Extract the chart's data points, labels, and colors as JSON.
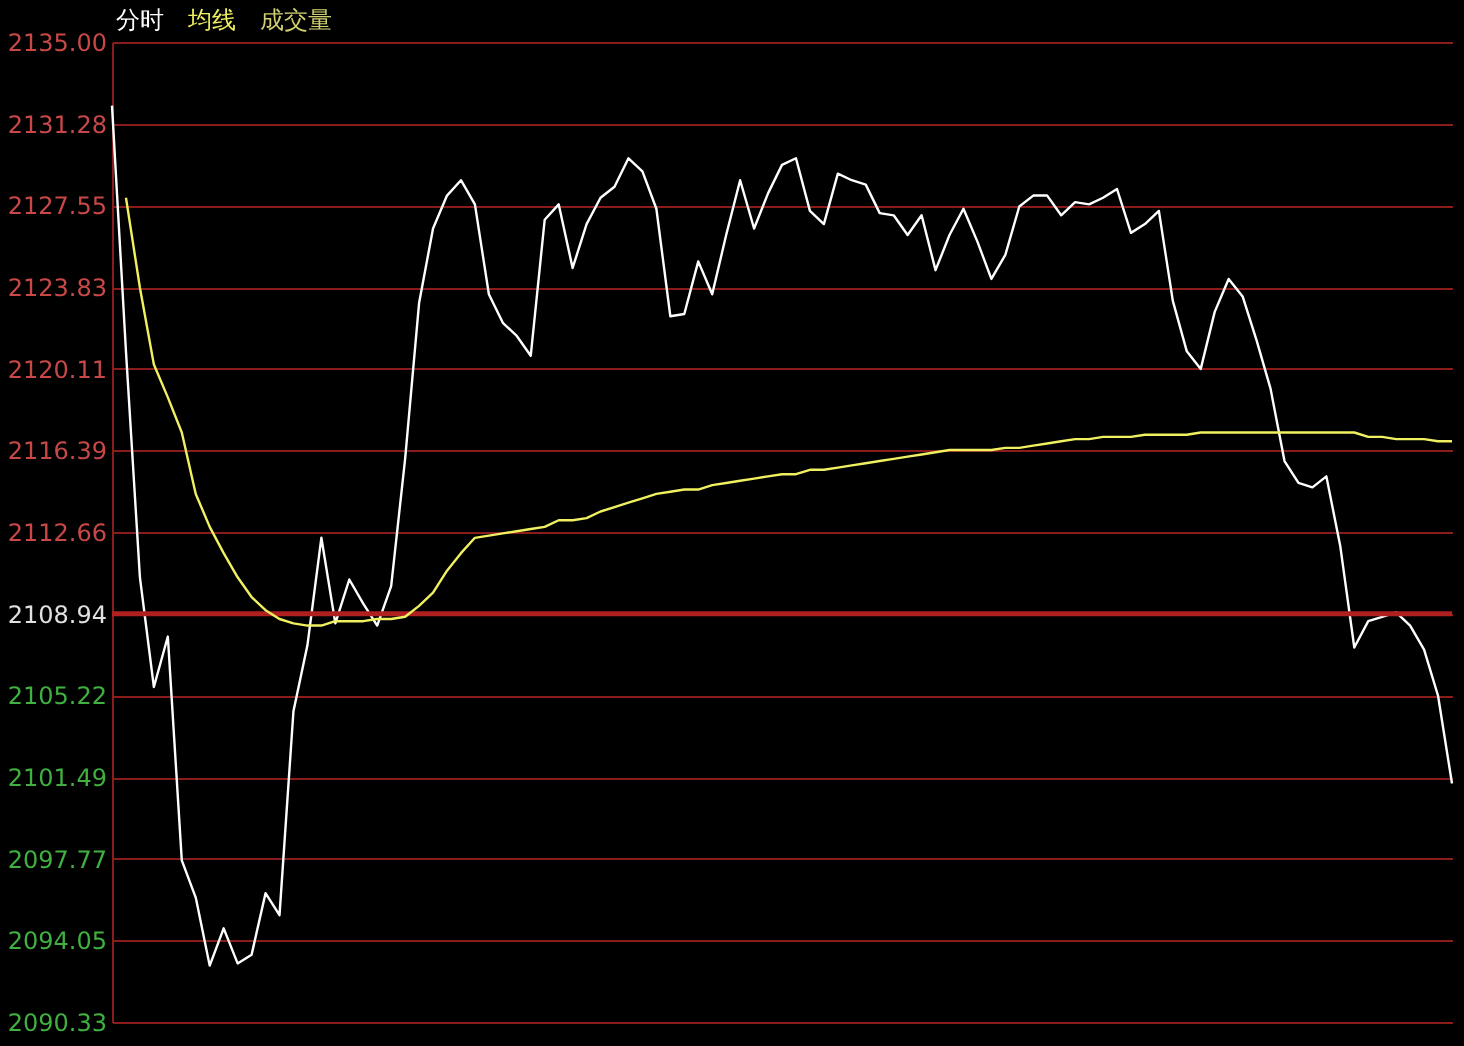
{
  "chart_data": {
    "type": "line",
    "categories": [
      null,
      null,
      null,
      null,
      null,
      null,
      null,
      null,
      null,
      null,
      null,
      null,
      null,
      null,
      null,
      null,
      null,
      null,
      null,
      null,
      null,
      null,
      null,
      null,
      null,
      null,
      null,
      null,
      null,
      null,
      null,
      null,
      null,
      null,
      null,
      null,
      null,
      null,
      null,
      null,
      null,
      null,
      null,
      null,
      null,
      null,
      null,
      null,
      null,
      null,
      null,
      null,
      null,
      null,
      null,
      null,
      null,
      null,
      null,
      null,
      null,
      null,
      null,
      null,
      null,
      null,
      null,
      null,
      null,
      null,
      null,
      null,
      null,
      null,
      null,
      null,
      null,
      null,
      null,
      null,
      null,
      null,
      null,
      null,
      null,
      null,
      null,
      null,
      null,
      null,
      null,
      null,
      null,
      null,
      null,
      null,
      null
    ],
    "series": [
      {
        "name": "分时",
        "color": "#ffffff",
        "values": [
          2132.1,
          2120.9,
          2110.6,
          2105.6,
          2107.9,
          2097.7,
          2096.0,
          2092.9,
          2094.6,
          2093.0,
          2093.4,
          2096.2,
          2095.2,
          2104.5,
          2107.5,
          2112.4,
          2108.5,
          2110.5,
          2109.4,
          2108.4,
          2110.2,
          2116.0,
          2123.1,
          2126.5,
          2128.0,
          2128.7,
          2127.6,
          2123.5,
          2122.2,
          2121.6,
          2120.7,
          2126.9,
          2127.6,
          2124.7,
          2126.7,
          2127.9,
          2128.4,
          2129.7,
          2129.1,
          2127.4,
          2122.5,
          2122.6,
          2125.0,
          2123.5,
          2126.2,
          2128.7,
          2126.5,
          2128.1,
          2129.4,
          2129.7,
          2127.3,
          2126.7,
          2129.0,
          2128.7,
          2128.5,
          2127.2,
          2127.1,
          2126.2,
          2127.1,
          2124.6,
          2126.2,
          2127.4,
          2125.9,
          2124.2,
          2125.3,
          2127.5,
          2128.0,
          2128.0,
          2127.1,
          2127.7,
          2127.6,
          2127.9,
          2128.3,
          2126.3,
          2126.7,
          2127.3,
          2123.2,
          2120.9,
          2120.1,
          2122.7,
          2124.2,
          2123.4,
          2121.4,
          2119.2,
          2115.9,
          2114.9,
          2114.7,
          2115.2,
          2112.0,
          2107.4,
          2108.6,
          2108.8,
          2109.0,
          2108.4,
          2107.3,
          2105.2,
          2101.2
        ]
      },
      {
        "name": "均线",
        "color": "#f0f060",
        "values": [
          null,
          2127.9,
          2123.8,
          2120.3,
          2118.8,
          2117.2,
          2114.4,
          2112.9,
          2111.7,
          2110.6,
          2109.7,
          2109.1,
          2108.7,
          2108.5,
          2108.4,
          2108.4,
          2108.6,
          2108.6,
          2108.6,
          2108.7,
          2108.7,
          2108.8,
          2109.3,
          2109.9,
          2110.9,
          2111.7,
          2112.4,
          2112.5,
          2112.6,
          2112.7,
          2112.8,
          2112.9,
          2113.2,
          2113.2,
          2113.3,
          2113.6,
          2113.8,
          2114.0,
          2114.2,
          2114.4,
          2114.5,
          2114.6,
          2114.6,
          2114.8,
          2114.9,
          2115.0,
          2115.1,
          2115.2,
          2115.3,
          2115.3,
          2115.5,
          2115.5,
          2115.6,
          2115.7,
          2115.8,
          2115.9,
          2116.0,
          2116.1,
          2116.2,
          2116.3,
          2116.4,
          2116.4,
          2116.4,
          2116.4,
          2116.5,
          2116.5,
          2116.6,
          2116.7,
          2116.8,
          2116.9,
          2116.9,
          2117.0,
          2117.0,
          2117.0,
          2117.1,
          2117.1,
          2117.1,
          2117.1,
          2117.2,
          2117.2,
          2117.2,
          2117.2,
          2117.2,
          2117.2,
          2117.2,
          2117.2,
          2117.2,
          2117.2,
          2117.2,
          2117.2,
          2117.0,
          2117.0,
          2116.9,
          2116.9,
          2116.9,
          2116.8,
          2116.8
        ]
      }
    ],
    "annotations": [
      "成交量"
    ],
    "ylim": [
      2090.33,
      2135.0
    ],
    "yticks": [
      {
        "value": 2135.0,
        "label": "2135.00"
      },
      {
        "value": 2131.28,
        "label": "2131.28"
      },
      {
        "value": 2127.55,
        "label": "2127.55"
      },
      {
        "value": 2123.83,
        "label": "2123.83"
      },
      {
        "value": 2120.11,
        "label": "2120.11"
      },
      {
        "value": 2116.39,
        "label": "2116.39"
      },
      {
        "value": 2112.66,
        "label": "2112.66"
      },
      {
        "value": 2108.94,
        "label": "2108.94"
      },
      {
        "value": 2105.22,
        "label": "2105.22"
      },
      {
        "value": 2101.49,
        "label": "2101.49"
      },
      {
        "value": 2097.77,
        "label": "2097.77"
      },
      {
        "value": 2094.05,
        "label": "2094.05"
      },
      {
        "value": 2090.33,
        "label": "2090.33"
      }
    ],
    "ref_lines": [
      {
        "axis": "y",
        "value": 2108.94,
        "color": "#b02020"
      }
    ],
    "grid": "y",
    "legend": "top left",
    "tick_labels": "y",
    "line_style": "solid"
  }
}
